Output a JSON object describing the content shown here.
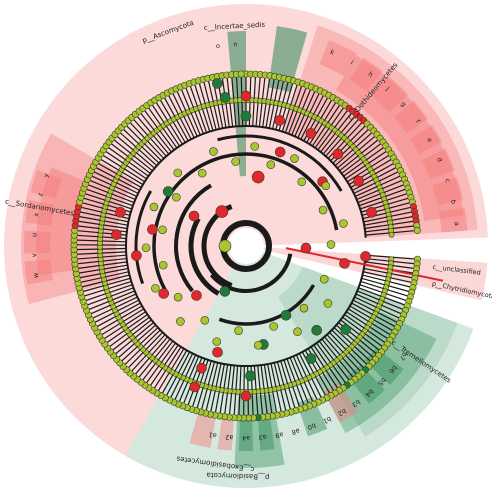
{
  "colors": {
    "red_fill": "#f57a7a",
    "red_node": "#e0262e",
    "green_fill": "#2e8b57",
    "green_node": "#1f7a3c",
    "neutral_node": "#a8c634",
    "branch": "#1a1a1a"
  },
  "clades": [
    {
      "id": "ascomycota",
      "label": "p__Ascomycota",
      "color": "red"
    },
    {
      "id": "incertae",
      "label": "c__Incertae_sedis",
      "color": "green"
    },
    {
      "id": "dothideomycetes",
      "label": "c__Dothideomycetes",
      "color": "red"
    },
    {
      "id": "sordariomycetes",
      "label": "c__Sordariomycetes",
      "color": "red"
    },
    {
      "id": "chytridiomycota",
      "label": "p__Chytridiomycota",
      "color": "red"
    },
    {
      "id": "c_unclassified",
      "label": "c__unclassified",
      "color": "red"
    },
    {
      "id": "tremellomycetes",
      "label": "c__Tremellomycetes",
      "color": "green"
    },
    {
      "id": "basidiomycota",
      "label": "p__Basidiomycota",
      "color": "green"
    },
    {
      "id": "exobasidiomycetes",
      "label": "c__Exobasidiomycetes",
      "color": "green"
    }
  ],
  "letters": {
    "dothideomycetes": [
      "k",
      "i",
      "h",
      "j",
      "g",
      "f",
      "e",
      "d",
      "c",
      "b",
      "a"
    ],
    "sordariomycetes": [
      "w",
      "v",
      "u",
      "x",
      "z",
      "y"
    ],
    "bottom": [
      "b7",
      "b6",
      "b5",
      "b4",
      "b3",
      "b2",
      "b1",
      "b0",
      "a8",
      "a9",
      "a3",
      "a4",
      "a2",
      "a1"
    ],
    "incertae": [
      "o",
      "n"
    ]
  }
}
